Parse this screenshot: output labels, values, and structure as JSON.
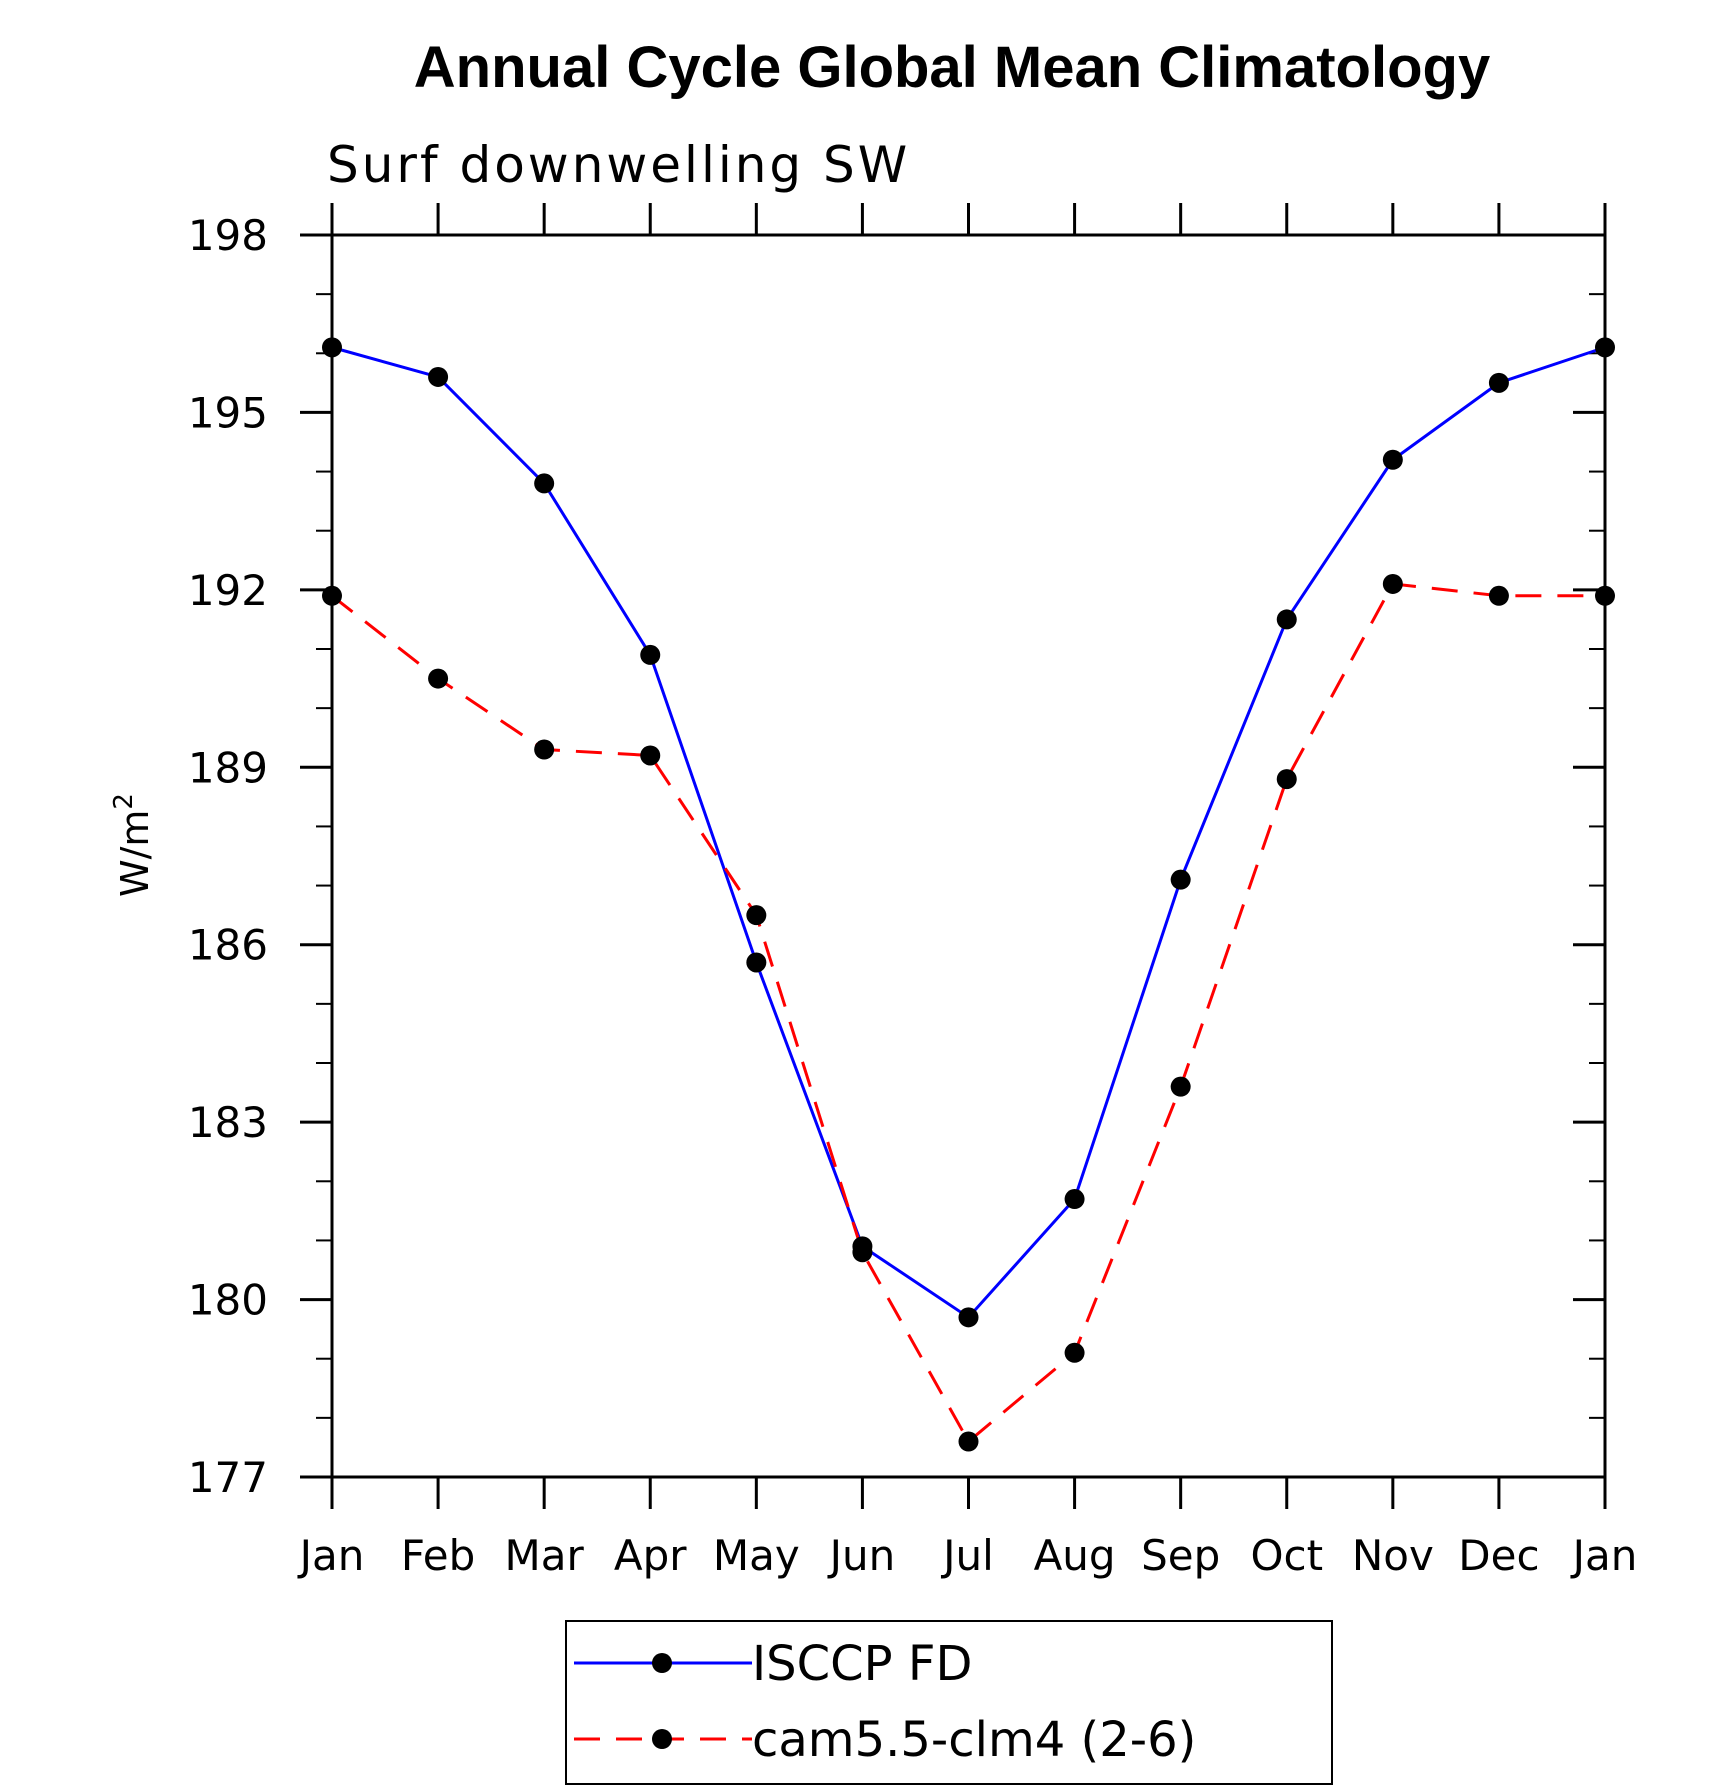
{
  "chart_data": {
    "type": "line",
    "title": "Annual Cycle Global Mean Climatology",
    "subtitle": "Surf downwelling SW",
    "ylabel_base": "W/m",
    "ylabel_sup": "2",
    "xlabel": "",
    "categories": [
      "Jan",
      "Feb",
      "Mar",
      "Apr",
      "May",
      "Jun",
      "Jul",
      "Aug",
      "Sep",
      "Oct",
      "Nov",
      "Dec",
      "Jan"
    ],
    "yticks": [
      177,
      180,
      183,
      186,
      189,
      192,
      195,
      198
    ],
    "ylim": [
      177,
      198
    ],
    "grid": false,
    "legend_position": "bottom",
    "series": [
      {
        "name": "ISCCP FD",
        "color": "#0000ff",
        "dash": "solid",
        "values": [
          196.1,
          195.6,
          193.8,
          190.9,
          185.7,
          180.9,
          179.7,
          181.7,
          187.1,
          191.5,
          194.2,
          195.5,
          196.1
        ]
      },
      {
        "name": "cam5.5-clm4 (2-6)",
        "color": "#ff0000",
        "dash": "dashed",
        "values": [
          191.9,
          190.5,
          189.3,
          189.2,
          186.5,
          180.8,
          177.6,
          179.1,
          183.6,
          188.8,
          192.1,
          191.9,
          191.9
        ]
      }
    ]
  }
}
